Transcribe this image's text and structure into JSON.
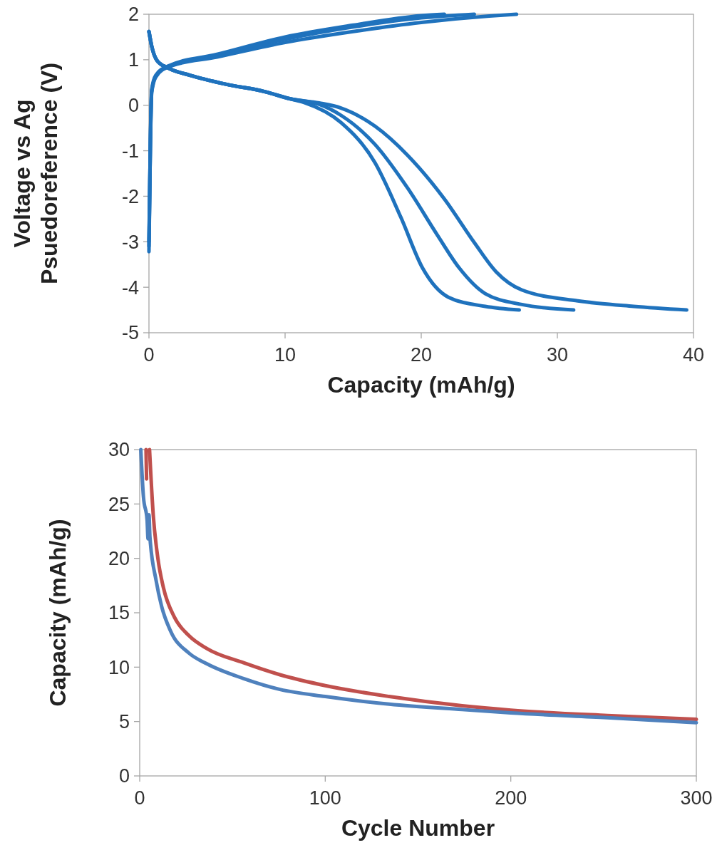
{
  "chart_data": [
    {
      "type": "line",
      "xlabel": "Capacity (mAh/g)",
      "ylabel": "Voltage vs Ag\nPsuedoreference (V)",
      "xlim": [
        0,
        40
      ],
      "ylim": [
        -5,
        2
      ],
      "xticks": [
        0,
        10,
        20,
        30,
        40
      ],
      "yticks": [
        -5,
        -4,
        -3,
        -2,
        -1,
        0,
        1,
        2
      ],
      "grid": false,
      "marker": "none",
      "line_style": "solid",
      "series": [
        {
          "color": "#1f72bd",
          "x": [
            0,
            0.1,
            0.2,
            0.5,
            1.4,
            5,
            10,
            15,
            20,
            21.7
          ],
          "values": [
            -3.22,
            -0.86,
            0.34,
            0.66,
            0.86,
            1.12,
            1.5,
            1.76,
            1.97,
            2.0
          ]
        },
        {
          "color": "#1f72bd",
          "x": [
            0,
            0.1,
            0.2,
            0.5,
            1.4,
            5,
            10,
            15,
            20,
            23.9
          ],
          "values": [
            -3.1,
            -0.9,
            0.3,
            0.64,
            0.85,
            1.1,
            1.45,
            1.72,
            1.92,
            2.0
          ]
        },
        {
          "color": "#1f72bd",
          "x": [
            0,
            0.1,
            0.2,
            0.5,
            1.4,
            5,
            10,
            15,
            20,
            25,
            27
          ],
          "values": [
            -3.0,
            -0.95,
            0.28,
            0.62,
            0.84,
            1.06,
            1.38,
            1.62,
            1.82,
            1.96,
            2.0
          ]
        },
        {
          "color": "#1f72bd",
          "x": [
            0,
            0.2,
            0.6,
            1.4,
            3,
            5.7,
            8.5,
            10.4,
            11.4,
            14.1,
            16.6,
            18.5,
            20.1,
            22,
            24.7,
            27.2
          ],
          "values": [
            1.62,
            1.3,
            0.98,
            0.82,
            0.66,
            0.46,
            0.3,
            0.14,
            0.06,
            -0.38,
            -1.26,
            -2.46,
            -3.58,
            -4.22,
            -4.42,
            -4.5
          ]
        },
        {
          "color": "#1f72bd",
          "x": [
            0,
            0.2,
            0.6,
            1.4,
            3,
            5.7,
            8.5,
            10.4,
            12.5,
            14.1,
            16.6,
            19,
            21.2,
            22.8,
            24.7,
            27.4,
            31.2
          ],
          "values": [
            1.62,
            1.3,
            0.98,
            0.82,
            0.66,
            0.46,
            0.3,
            0.14,
            0.02,
            -0.22,
            -0.86,
            -1.82,
            -2.86,
            -3.58,
            -4.14,
            -4.38,
            -4.5
          ]
        },
        {
          "color": "#1f72bd",
          "x": [
            0,
            0.2,
            0.6,
            1.4,
            3,
            5.7,
            8.5,
            10.4,
            12.5,
            14.1,
            16.6,
            19,
            21.7,
            23.9,
            25.5,
            27.4,
            31.5,
            35.6,
            39.5
          ],
          "values": [
            1.62,
            1.3,
            0.98,
            0.82,
            0.66,
            0.46,
            0.3,
            0.14,
            0.05,
            -0.06,
            -0.46,
            -1.1,
            -2.06,
            -3.02,
            -3.66,
            -4.06,
            -4.3,
            -4.42,
            -4.5
          ]
        }
      ]
    },
    {
      "type": "line",
      "xlabel": "Cycle Number",
      "ylabel": "Capacity (mAh/g)",
      "xlim": [
        0,
        300
      ],
      "ylim": [
        0,
        30
      ],
      "xticks": [
        0,
        100,
        200,
        300
      ],
      "yticks": [
        0,
        5,
        10,
        15,
        20,
        25,
        30
      ],
      "grid": false,
      "marker": "none",
      "line_style": "solid",
      "series": [
        {
          "color": "#c0504d",
          "x": [
            3.4,
            3.7,
            4.2,
            5.3,
            7.3,
            9.8,
            12.8,
            18.7,
            26.5,
            36.3,
            56,
            75.6,
            100,
            134.5,
            173.8,
            200,
            252,
            300
          ],
          "values": [
            30,
            27.3,
            null,
            30,
            24,
            20,
            17.3,
            14.6,
            12.9,
            11.7,
            10.4,
            9.3,
            8.3,
            7.3,
            6.45,
            6.05,
            5.55,
            5.2
          ]
        },
        {
          "color": "#4f81bd",
          "x": [
            0.6,
            2,
            4,
            4.5,
            5,
            5.5,
            8.8,
            11.8,
            16.7,
            26.5,
            36.3,
            56,
            75.6,
            100,
            134.5,
            173.8,
            200,
            252,
            300
          ],
          "values": [
            30,
            25.7,
            23.5,
            21.8,
            24,
            22,
            18,
            15.6,
            13.3,
            11.3,
            10.3,
            8.95,
            7.95,
            7.3,
            6.6,
            6.1,
            5.8,
            5.35,
            4.9
          ]
        }
      ]
    }
  ]
}
